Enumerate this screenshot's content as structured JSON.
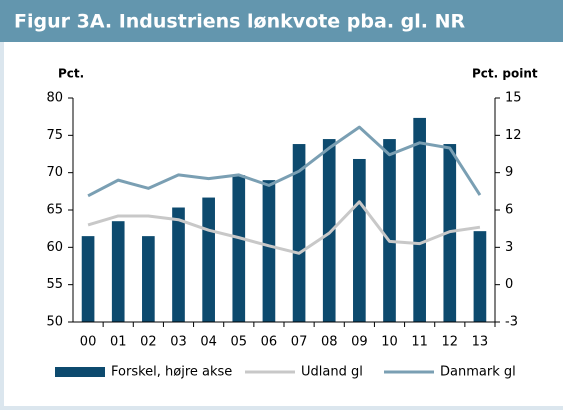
{
  "chart_data": {
    "type": "bar_line",
    "title": "Figur 3A. Industriens lønkvote pba. gl. NR",
    "ylabel": "Pct.",
    "y2label": "Pct. point",
    "categories": [
      "00",
      "01",
      "02",
      "03",
      "04",
      "05",
      "06",
      "07",
      "08",
      "09",
      "10",
      "11",
      "12",
      "13"
    ],
    "ylim": [
      50,
      80
    ],
    "yticks": [
      50,
      55,
      60,
      65,
      70,
      75,
      80
    ],
    "y2lim": [
      -3,
      15
    ],
    "y2ticks": [
      -3,
      0,
      3,
      6,
      9,
      12,
      15
    ],
    "grid": false,
    "legend": "bottom",
    "series": [
      {
        "name": "Forskel, højre akse",
        "type": "bar",
        "axis": "y2",
        "color": "#0d4a6e",
        "values": [
          3.9,
          5.1,
          3.9,
          6.2,
          7.0,
          8.8,
          8.4,
          11.3,
          11.7,
          10.1,
          11.7,
          13.4,
          11.3,
          4.3
        ]
      },
      {
        "name": "Udland gl",
        "type": "line",
        "color": "#c8c8c8",
        "values": [
          63.0,
          64.2,
          64.2,
          63.7,
          62.3,
          61.3,
          60.2,
          59.2,
          61.9,
          66.1,
          60.8,
          60.5,
          62.1,
          62.7
        ]
      },
      {
        "name": "Danmark gl",
        "type": "line",
        "color": "#7a9fb3",
        "values": [
          66.9,
          69.0,
          67.9,
          69.7,
          69.2,
          69.7,
          68.3,
          70.2,
          73.3,
          76.1,
          72.4,
          74.0,
          73.3,
          67.0
        ]
      }
    ]
  }
}
